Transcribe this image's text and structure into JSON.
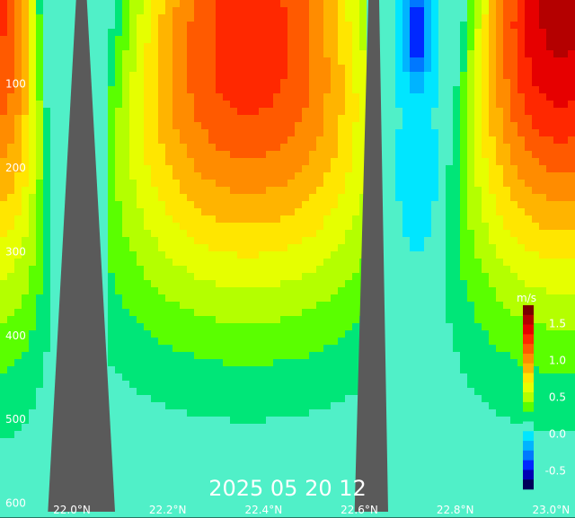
{
  "chart_data": {
    "type": "heatmap",
    "title": "2025 05 20 12",
    "colorbar": {
      "unit": "m/s",
      "ticks": [
        "1.5",
        "1.0",
        "0.5",
        "0.0",
        "-0.5"
      ],
      "tick_values": [
        1.5,
        1.0,
        0.5,
        0.0,
        -0.5
      ],
      "range": [
        -0.75,
        1.75
      ],
      "colors": [
        "#00005a",
        "#0000b4",
        "#0028ff",
        "#0078ff",
        "#00b4ff",
        "#00e6ff",
        "#50f0c8",
        "#00e678",
        "#5aff00",
        "#b4ff00",
        "#e6ff00",
        "#ffe600",
        "#ffb400",
        "#ff8c00",
        "#ff5a00",
        "#ff2800",
        "#e60000",
        "#b40000",
        "#780000"
      ]
    },
    "y_axis": {
      "ticks": [
        "100",
        "200",
        "300",
        "400",
        "500",
        "600"
      ],
      "tick_values": [
        100,
        200,
        300,
        400,
        500,
        600
      ],
      "range": [
        0,
        610
      ],
      "inverted": true
    },
    "x_axis": {
      "ticks": [
        "22.0°N",
        "22.2°N",
        "22.4°N",
        "22.6°N",
        "22.8°N",
        "23.0°N"
      ],
      "tick_values": [
        22.0,
        22.2,
        22.4,
        22.6,
        22.8,
        23.0
      ],
      "range": [
        21.85,
        23.05
      ]
    },
    "contour_interval": 0.125,
    "negative_contours": "dashed",
    "land_color": "#5a5a5a",
    "jets": [
      {
        "x_range": [
          21.85,
          22.02
        ],
        "core_lat": 21.85,
        "core_speed": 1.25,
        "core_depth": 0,
        "base_depth": 600
      },
      {
        "x_range": [
          22.08,
          22.62
        ],
        "core_lat": 22.37,
        "core_speed": 1.3,
        "core_depth": 60,
        "base_depth": 500
      },
      {
        "x_range": [
          22.67,
          23.05
        ],
        "core_lat": 23.02,
        "core_speed": 1.55,
        "core_depth": 0,
        "base_depth": 560
      }
    ],
    "ridges": [
      {
        "peak_lat": 22.02,
        "top_depth": 0,
        "base_lat_range": [
          21.95,
          22.09
        ]
      },
      {
        "peak_lat": 22.63,
        "top_depth": 0,
        "base_lat_range": [
          22.59,
          22.66
        ]
      }
    ],
    "undercurrents": [
      {
        "lat": 22.72,
        "depth": 40,
        "speed": -0.55
      },
      {
        "lat": 22.72,
        "depth": 200,
        "speed": -0.15
      }
    ]
  }
}
